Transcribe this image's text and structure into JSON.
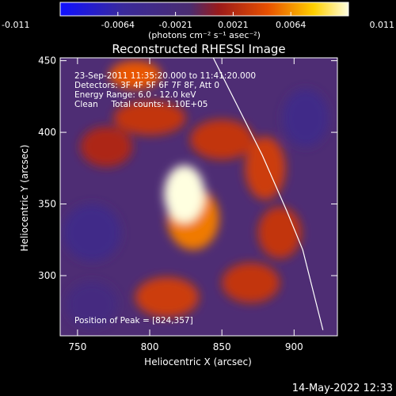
{
  "chart_data": {
    "type": "heatmap",
    "title": "Reconstructed RHESSI Image",
    "xlabel": "Heliocentric X (arcsec)",
    "ylabel": "Heliocentric Y (arcsec)",
    "xlim": [
      738,
      930
    ],
    "ylim": [
      258,
      452
    ],
    "x_ticks": [
      750,
      800,
      850,
      900
    ],
    "y_ticks": [
      300,
      350,
      400,
      450
    ],
    "colorbar": {
      "ticks": [
        "-0.011",
        "-0.0064",
        "-0.0021",
        "0.0021",
        "0.0064",
        "0.011"
      ],
      "range": [
        -0.011,
        0.011
      ],
      "unit_label": "(photons cm⁻² s⁻¹ asec⁻²)",
      "colors": [
        "#1010ff",
        "#3a2a9a",
        "#4a2c70",
        "#9a1a1a",
        "#e85000",
        "#ffd000",
        "#ffffe0"
      ]
    },
    "info_lines": [
      "23-Sep-2011 11:35:20.000 to 11:41:20.000",
      "Detectors: 3F 4F 5F 6F 7F 8F, Att 0",
      "Energy Range: 6.0 - 12.0 keV",
      "Clean     Total counts: 1.10E+05"
    ],
    "peak_label": "Position of Peak = [824,357]",
    "peak": [
      824,
      357
    ],
    "limb_curve": [
      [
        844,
        452
      ],
      [
        860,
        420
      ],
      [
        878,
        384
      ],
      [
        895,
        345
      ],
      [
        906,
        318
      ],
      [
        918,
        270
      ],
      [
        920,
        262
      ]
    ],
    "blobs": [
      {
        "x": 824,
        "y": 357,
        "rx": 14,
        "ry": 20,
        "v": 0.011
      },
      {
        "x": 830,
        "y": 340,
        "rx": 18,
        "ry": 22,
        "v": 0.006
      },
      {
        "x": 790,
        "y": 440,
        "rx": 18,
        "ry": 10,
        "v": 0.005
      },
      {
        "x": 800,
        "y": 410,
        "rx": 25,
        "ry": 12,
        "v": 0.003
      },
      {
        "x": 850,
        "y": 395,
        "rx": 22,
        "ry": 14,
        "v": 0.003
      },
      {
        "x": 880,
        "y": 375,
        "rx": 14,
        "ry": 22,
        "v": 0.0035
      },
      {
        "x": 890,
        "y": 330,
        "rx": 15,
        "ry": 18,
        "v": 0.003
      },
      {
        "x": 870,
        "y": 295,
        "rx": 20,
        "ry": 14,
        "v": 0.003
      },
      {
        "x": 812,
        "y": 285,
        "rx": 22,
        "ry": 14,
        "v": 0.0035
      },
      {
        "x": 770,
        "y": 390,
        "rx": 18,
        "ry": 14,
        "v": 0.002
      },
      {
        "x": 760,
        "y": 330,
        "rx": 20,
        "ry": 20,
        "v": -0.004
      },
      {
        "x": 908,
        "y": 410,
        "rx": 16,
        "ry": 20,
        "v": -0.004
      },
      {
        "x": 760,
        "y": 280,
        "rx": 18,
        "ry": 16,
        "v": -0.003
      }
    ]
  },
  "footer": {
    "date": "14-May-2022 12:33"
  }
}
